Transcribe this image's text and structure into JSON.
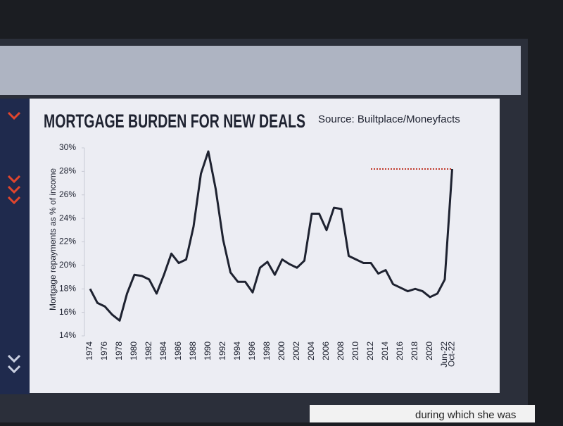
{
  "chart_data": {
    "type": "line",
    "title": "MORTGAGE BURDEN FOR NEW DEALS",
    "subtitle": "Source: Builtplace/Moneyfacts",
    "y_label": "Mortgage repayments as % of income",
    "categories": [
      "1974",
      null,
      "1976",
      null,
      "1978",
      null,
      "1980",
      null,
      "1982",
      null,
      "1984",
      null,
      "1986",
      null,
      "1988",
      null,
      "1990",
      null,
      "1992",
      null,
      "1994",
      null,
      "1996",
      null,
      "1998",
      null,
      "2000",
      null,
      "2002",
      null,
      "2004",
      null,
      "2006",
      null,
      "2008",
      null,
      "2010",
      null,
      "2012",
      null,
      "2014",
      null,
      "2016",
      null,
      "2018",
      null,
      "2020",
      null,
      "Jun-22",
      "Oct-22"
    ],
    "series": [
      {
        "name": "Mortgage burden",
        "color": "#1e2230",
        "values": [
          18.0,
          16.8,
          16.5,
          15.8,
          15.3,
          17.6,
          19.2,
          19.1,
          18.8,
          17.6,
          19.2,
          21.0,
          20.2,
          20.5,
          23.3,
          27.8,
          29.7,
          26.5,
          22.2,
          19.4,
          18.6,
          18.6,
          17.7,
          19.8,
          20.3,
          19.2,
          20.5,
          20.1,
          19.8,
          20.4,
          24.4,
          24.4,
          23.0,
          24.9,
          24.8,
          20.8,
          20.5,
          20.2,
          20.2,
          19.3,
          19.6,
          18.4,
          18.1,
          17.8,
          18.0,
          17.8,
          17.3,
          17.6,
          18.8,
          28.2
        ]
      }
    ],
    "reference_line": {
      "value": 28.2,
      "color": "#c0392b",
      "style": "dotted"
    },
    "ylim": [
      14,
      30
    ],
    "yticks": [
      {
        "value": 14,
        "label": "14%"
      },
      {
        "value": 16,
        "label": "16%"
      },
      {
        "value": 18,
        "label": "18%"
      },
      {
        "value": 20,
        "label": "20%"
      },
      {
        "value": 22,
        "label": "22%"
      },
      {
        "value": 24,
        "label": "24%"
      },
      {
        "value": 26,
        "label": "26%"
      },
      {
        "value": 28,
        "label": "28%"
      },
      {
        "value": 30,
        "label": "30%"
      }
    ],
    "grid": false
  },
  "ticker": "during which she was"
}
